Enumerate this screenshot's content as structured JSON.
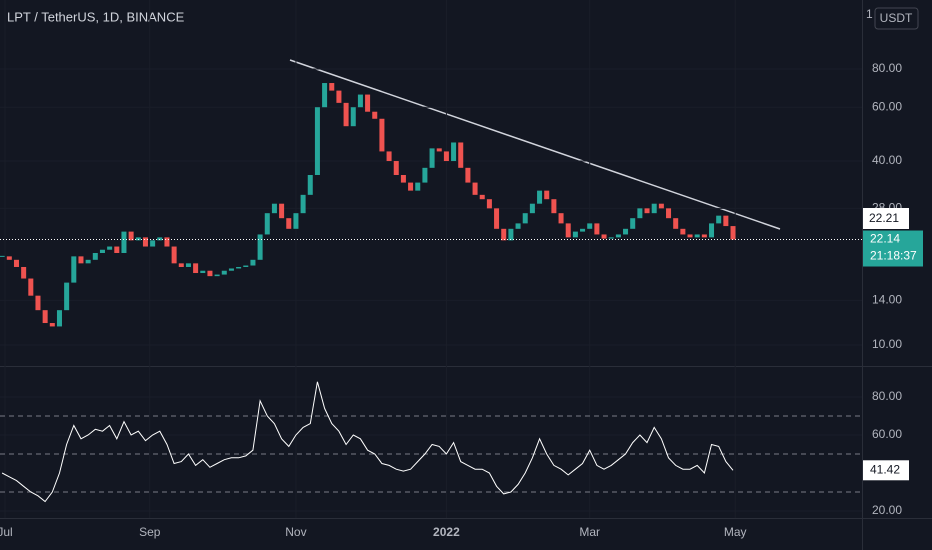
{
  "chart_data": {
    "type": "candlestick",
    "title": "LPT / TetherUS, 1D, BINANCE",
    "currency": "USDT",
    "top_label": "1",
    "log_scale": true,
    "up_color": "#26a69a",
    "down_color": "#ef5350",
    "xlim": [
      -0.3,
      120
    ],
    "xticks": [
      {
        "value": 0.4,
        "label": "Jul"
      },
      {
        "value": 20.6,
        "label": "Sep"
      },
      {
        "value": 41,
        "label": "Nov"
      },
      {
        "value": 62,
        "label": "2022"
      },
      {
        "value": 82,
        "label": "Mar"
      },
      {
        "value": 102.3,
        "label": "May"
      }
    ],
    "ylim": [
      8.6,
      134.6
    ],
    "yticks": [
      {
        "value": 80,
        "label": "80.00"
      },
      {
        "value": 60,
        "label": "60.00"
      },
      {
        "value": 40,
        "label": "40.00"
      },
      {
        "value": 28,
        "label": "28.00"
      },
      {
        "value": 14,
        "label": "14.00"
      },
      {
        "value": 10,
        "label": "10.00"
      }
    ],
    "close": [
      19.5,
      19,
      18,
      16.5,
      14.5,
      13,
      11.8,
      11.5,
      13,
      16,
      19.5,
      18.5,
      19,
      20,
      20.5,
      21,
      20,
      23.5,
      22,
      22.5,
      21,
      22,
      22.5,
      21,
      18.5,
      18,
      18.5,
      17.2,
      17.5,
      16.8,
      17,
      17.5,
      17.8,
      18,
      18.2,
      19,
      23,
      27,
      29,
      26,
      24,
      27,
      31,
      36,
      60,
      72,
      68,
      62,
      52,
      60,
      66,
      58,
      55,
      43,
      40,
      36,
      34,
      32,
      34,
      38,
      44,
      43,
      40,
      46,
      38,
      34,
      31,
      30,
      28,
      24,
      22,
      24,
      25,
      27,
      29,
      32,
      30,
      27,
      25,
      22.5,
      23.5,
      24,
      25,
      23,
      22.3,
      22.5,
      23,
      24,
      26,
      28,
      27,
      29,
      28,
      26,
      24,
      23,
      22.5,
      23,
      22.5,
      25,
      26.5,
      24.5,
      22.14
    ],
    "trendline_label": "22.21",
    "last_price": {
      "value": 22.14,
      "label": "22.14",
      "countdown": "21:18:37"
    },
    "rsi": {
      "ylim": [
        16.3,
        95.8
      ],
      "yticks": [
        {
          "value": 80,
          "label": "80.00"
        },
        {
          "value": 60,
          "label": "60.00"
        },
        {
          "value": 20,
          "label": "20.00"
        }
      ],
      "levels": [
        70,
        50,
        30
      ],
      "color": "#ffffff",
      "values": [
        40,
        38,
        36,
        33,
        30,
        28,
        25,
        30,
        40,
        55,
        65,
        58,
        60,
        63,
        62,
        65,
        58,
        67,
        60,
        62,
        57,
        60,
        62,
        55,
        45,
        46,
        50,
        44,
        47,
        43,
        45,
        47,
        48,
        48,
        49,
        52,
        78,
        70,
        66,
        58,
        54,
        60,
        64,
        66,
        88,
        74,
        66,
        62,
        55,
        60,
        58,
        52,
        50,
        45,
        44,
        42,
        41,
        42,
        46,
        50,
        55,
        54,
        50,
        56,
        46,
        44,
        42,
        42,
        40,
        33,
        29,
        30,
        34,
        40,
        48,
        58,
        50,
        44,
        42,
        39,
        42,
        45,
        52,
        44,
        42,
        44,
        47,
        50,
        56,
        60,
        56,
        64,
        58,
        48,
        44,
        42,
        42,
        44,
        40,
        55,
        54,
        46,
        41.42
      ],
      "last_label": "41.42"
    }
  }
}
